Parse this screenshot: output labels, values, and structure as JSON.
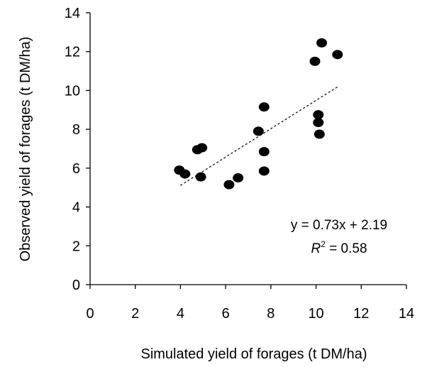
{
  "chart_data": {
    "type": "scatter",
    "xlabel": "Simulated yield of forages (t DM/ha)",
    "ylabel": "Observed yield of forages (t DM/ha)",
    "xlim": [
      0,
      14
    ],
    "ylim": [
      0,
      14
    ],
    "x_ticks": [
      0,
      2,
      4,
      6,
      8,
      10,
      12,
      14
    ],
    "y_ticks": [
      0,
      2,
      4,
      6,
      8,
      10,
      12,
      14
    ],
    "grid": false,
    "marker_color": "#000000",
    "points": [
      {
        "x": 3.95,
        "y": 5.9
      },
      {
        "x": 4.2,
        "y": 5.7
      },
      {
        "x": 4.75,
        "y": 6.95
      },
      {
        "x": 4.95,
        "y": 7.05
      },
      {
        "x": 4.9,
        "y": 5.55
      },
      {
        "x": 6.15,
        "y": 5.15
      },
      {
        "x": 6.55,
        "y": 5.5
      },
      {
        "x": 7.45,
        "y": 7.9
      },
      {
        "x": 7.7,
        "y": 9.15
      },
      {
        "x": 7.7,
        "y": 6.85
      },
      {
        "x": 7.7,
        "y": 5.85
      },
      {
        "x": 9.95,
        "y": 11.5
      },
      {
        "x": 10.25,
        "y": 12.45
      },
      {
        "x": 10.95,
        "y": 11.85
      },
      {
        "x": 10.1,
        "y": 8.75
      },
      {
        "x": 10.1,
        "y": 8.35
      },
      {
        "x": 10.15,
        "y": 7.75
      }
    ],
    "trendline": {
      "style": "dotted",
      "slope": 0.73,
      "intercept": 2.19,
      "x_range": [
        4.0,
        10.95
      ]
    },
    "annotations": {
      "equation": "y = 0.73x + 2.19",
      "r2_symbol": "R",
      "r2_exponent": "2",
      "r2_rest": " = 0.58"
    }
  }
}
